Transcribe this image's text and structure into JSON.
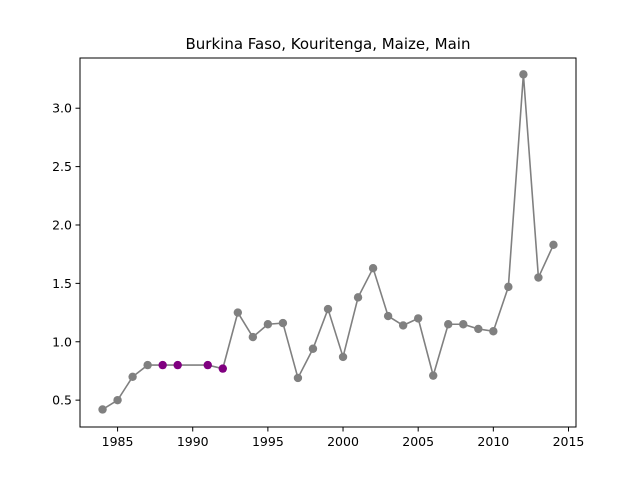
{
  "chart_data": {
    "type": "line",
    "title": "Burkina Faso, Kouritenga, Maize, Main",
    "xlabel": "",
    "ylabel": "",
    "xlim": [
      1982.5,
      2015.5
    ],
    "ylim": [
      0.27,
      3.43
    ],
    "xticks": [
      1985,
      1990,
      1995,
      2000,
      2005,
      2010,
      2015
    ],
    "yticks": [
      0.5,
      1.0,
      1.5,
      2.0,
      2.5,
      3.0
    ],
    "xtick_labels": [
      "1985",
      "1990",
      "1995",
      "2000",
      "2005",
      "2010",
      "2015"
    ],
    "ytick_labels": [
      "0.5",
      "1.0",
      "1.5",
      "2.0",
      "2.5",
      "3.0"
    ],
    "grid": false,
    "line_color": "#808080",
    "highlight_color": "#800080",
    "series": [
      {
        "x": [
          1984,
          1985,
          1986,
          1987,
          1988,
          1989,
          1991,
          1992,
          1993,
          1994,
          1995,
          1996,
          1997,
          1998,
          1999,
          2000,
          2001,
          2002,
          2003,
          2004,
          2005,
          2006,
          2007,
          2008,
          2009,
          2010,
          2011,
          2012,
          2013,
          2014
        ],
        "y": [
          0.42,
          0.5,
          0.7,
          0.8,
          0.8,
          0.8,
          0.8,
          0.77,
          1.25,
          1.04,
          1.15,
          1.16,
          0.69,
          0.94,
          1.28,
          0.87,
          1.38,
          1.63,
          1.22,
          1.14,
          1.2,
          0.71,
          1.15,
          1.15,
          1.11,
          1.09,
          1.47,
          3.29,
          1.55,
          1.83
        ],
        "highlighted": [
          false,
          false,
          false,
          false,
          true,
          true,
          true,
          true,
          false,
          false,
          false,
          false,
          false,
          false,
          false,
          false,
          false,
          false,
          false,
          false,
          false,
          false,
          false,
          false,
          false,
          false,
          false,
          false,
          false,
          false
        ]
      }
    ]
  }
}
